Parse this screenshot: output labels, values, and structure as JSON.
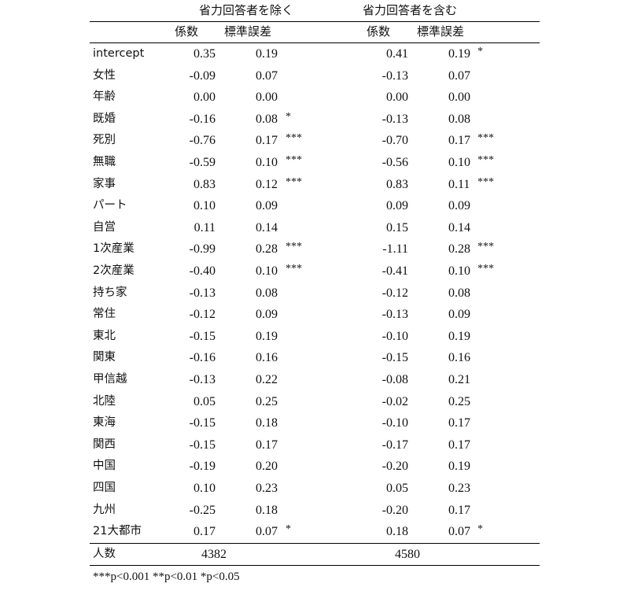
{
  "groups": [
    "省力回答者を除く",
    "省力回答者を含む"
  ],
  "subheaders": {
    "coef": "係数",
    "se": "標準誤差"
  },
  "rows": [
    {
      "label": "intercept",
      "c1": "0.35",
      "s1": "0.19",
      "g1": "",
      "c2": "0.41",
      "s2": "0.19",
      "g2": "*"
    },
    {
      "label": "女性",
      "c1": "-0.09",
      "s1": "0.07",
      "g1": "",
      "c2": "-0.13",
      "s2": "0.07",
      "g2": ""
    },
    {
      "label": "年齢",
      "c1": "0.00",
      "s1": "0.00",
      "g1": "",
      "c2": "0.00",
      "s2": "0.00",
      "g2": ""
    },
    {
      "label": "既婚",
      "c1": "-0.16",
      "s1": "0.08",
      "g1": "*",
      "c2": "-0.13",
      "s2": "0.08",
      "g2": ""
    },
    {
      "label": "死別",
      "c1": "-0.76",
      "s1": "0.17",
      "g1": "***",
      "c2": "-0.70",
      "s2": "0.17",
      "g2": "***"
    },
    {
      "label": "無職",
      "c1": "-0.59",
      "s1": "0.10",
      "g1": "***",
      "c2": "-0.56",
      "s2": "0.10",
      "g2": "***"
    },
    {
      "label": "家事",
      "c1": "0.83",
      "s1": "0.12",
      "g1": "***",
      "c2": "0.83",
      "s2": "0.11",
      "g2": "***"
    },
    {
      "label": "パート",
      "c1": "0.10",
      "s1": "0.09",
      "g1": "",
      "c2": "0.09",
      "s2": "0.09",
      "g2": ""
    },
    {
      "label": "自営",
      "c1": "0.11",
      "s1": "0.14",
      "g1": "",
      "c2": "0.15",
      "s2": "0.14",
      "g2": ""
    },
    {
      "label": "1次産業",
      "c1": "-0.99",
      "s1": "0.28",
      "g1": "***",
      "c2": "-1.11",
      "s2": "0.28",
      "g2": "***"
    },
    {
      "label": "2次産業",
      "c1": "-0.40",
      "s1": "0.10",
      "g1": "***",
      "c2": "-0.41",
      "s2": "0.10",
      "g2": "***"
    },
    {
      "label": "持ち家",
      "c1": "-0.13",
      "s1": "0.08",
      "g1": "",
      "c2": "-0.12",
      "s2": "0.08",
      "g2": ""
    },
    {
      "label": "常住",
      "c1": "-0.12",
      "s1": "0.09",
      "g1": "",
      "c2": "-0.13",
      "s2": "0.09",
      "g2": ""
    },
    {
      "label": "東北",
      "c1": "-0.15",
      "s1": "0.19",
      "g1": "",
      "c2": "-0.10",
      "s2": "0.19",
      "g2": ""
    },
    {
      "label": "関東",
      "c1": "-0.16",
      "s1": "0.16",
      "g1": "",
      "c2": "-0.15",
      "s2": "0.16",
      "g2": ""
    },
    {
      "label": "甲信越",
      "c1": "-0.13",
      "s1": "0.22",
      "g1": "",
      "c2": "-0.08",
      "s2": "0.21",
      "g2": ""
    },
    {
      "label": "北陸",
      "c1": "0.05",
      "s1": "0.25",
      "g1": "",
      "c2": "-0.02",
      "s2": "0.25",
      "g2": ""
    },
    {
      "label": "東海",
      "c1": "-0.15",
      "s1": "0.18",
      "g1": "",
      "c2": "-0.10",
      "s2": "0.17",
      "g2": ""
    },
    {
      "label": "関西",
      "c1": "-0.15",
      "s1": "0.17",
      "g1": "",
      "c2": "-0.17",
      "s2": "0.17",
      "g2": ""
    },
    {
      "label": "中国",
      "c1": "-0.19",
      "s1": "0.20",
      "g1": "",
      "c2": "-0.20",
      "s2": "0.19",
      "g2": ""
    },
    {
      "label": "四国",
      "c1": "0.10",
      "s1": "0.23",
      "g1": "",
      "c2": "0.05",
      "s2": "0.23",
      "g2": ""
    },
    {
      "label": "九州",
      "c1": "-0.25",
      "s1": "0.18",
      "g1": "",
      "c2": "-0.20",
      "s2": "0.17",
      "g2": ""
    },
    {
      "label": "21大都市",
      "c1": "0.17",
      "s1": "0.07",
      "g1": "*",
      "c2": "0.18",
      "s2": "0.07",
      "g2": "*"
    }
  ],
  "n": {
    "label": "人数",
    "n1": "4382",
    "n2": "4580"
  },
  "footnote": "***p<0.001 **p<0.01 *p<0.05"
}
